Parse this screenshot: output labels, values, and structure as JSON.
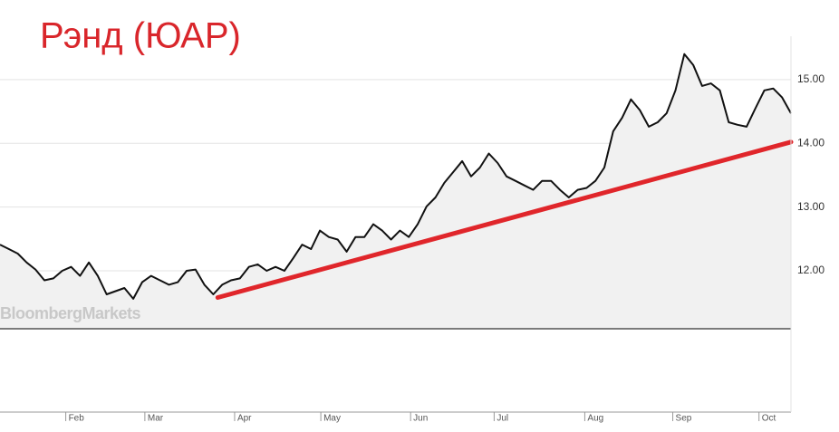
{
  "chart_data": {
    "type": "line",
    "title": "Рэнд (ЮАР)",
    "watermark": "BloombergMarkets",
    "xlim": [
      0,
      89
    ],
    "xticks": [
      {
        "value": 7.4,
        "label": "Feb"
      },
      {
        "value": 16.3,
        "label": "Mar"
      },
      {
        "value": 26.4,
        "label": "Apr"
      },
      {
        "value": 36.1,
        "label": "May"
      },
      {
        "value": 46.2,
        "label": "Jun"
      },
      {
        "value": 55.6,
        "label": "Jul"
      },
      {
        "value": 65.8,
        "label": "Aug"
      },
      {
        "value": 75.7,
        "label": "Sep"
      },
      {
        "value": 85.4,
        "label": "Oct"
      }
    ],
    "ylim": [
      11.09,
      15.68
    ],
    "yticks": [
      {
        "value": 12,
        "label": "12.00"
      },
      {
        "value": 13,
        "label": "13.00"
      },
      {
        "value": 14,
        "label": "14.00"
      },
      {
        "value": 15,
        "label": "15.00"
      }
    ],
    "grid": true,
    "series": [
      {
        "color": "#111111",
        "values": [
          12.41,
          12.34,
          12.27,
          12.13,
          12.02,
          11.85,
          11.88,
          12.0,
          12.06,
          11.92,
          12.13,
          11.92,
          11.63,
          11.68,
          11.73,
          11.56,
          11.82,
          11.92,
          11.85,
          11.78,
          11.82,
          12.0,
          12.02,
          11.78,
          11.63,
          11.78,
          11.85,
          11.88,
          12.06,
          12.1,
          12.0,
          12.06,
          12.0,
          12.2,
          12.41,
          12.34,
          12.63,
          12.53,
          12.49,
          12.3,
          12.53,
          12.53,
          12.73,
          12.63,
          12.49,
          12.63,
          12.53,
          12.73,
          13.01,
          13.15,
          13.38,
          13.55,
          13.72,
          13.48,
          13.62,
          13.84,
          13.69,
          13.48,
          13.41,
          13.34,
          13.27,
          13.41,
          13.41,
          13.27,
          13.15,
          13.27,
          13.3,
          13.41,
          13.62,
          14.19,
          14.4,
          14.69,
          14.52,
          14.26,
          14.33,
          14.47,
          14.83,
          15.4,
          15.23,
          14.9,
          14.94,
          14.83,
          14.33,
          14.29,
          14.26,
          14.55,
          14.83,
          14.86,
          14.72,
          14.47
        ]
      }
    ],
    "trend_line": {
      "x": [
        24.5,
        89
      ],
      "y": [
        11.58,
        14.02
      ],
      "color": "#e0262b"
    }
  }
}
